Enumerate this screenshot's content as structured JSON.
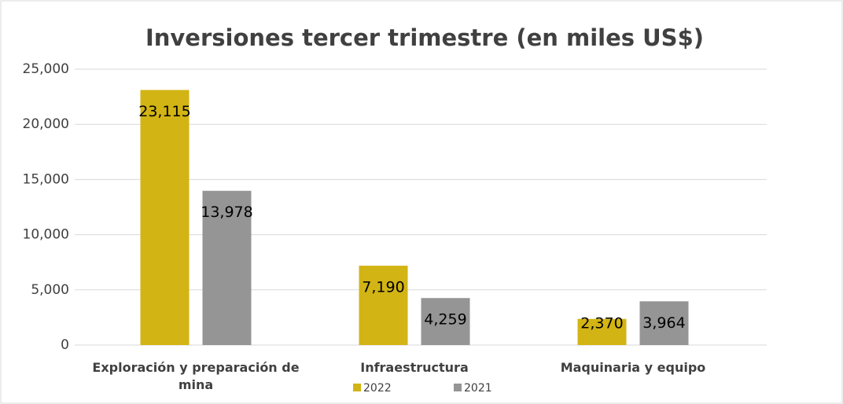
{
  "chart_data": {
    "type": "bar",
    "title": "Inversiones tercer trimestre (en miles US$)",
    "categories": [
      "Exploración y preparación de mina",
      "Infraestructura",
      "Maquinaria y equipo"
    ],
    "series": [
      {
        "name": "2022",
        "color": "#d2b414",
        "values": [
          23115,
          7190,
          2370
        ],
        "value_labels": [
          "23,115",
          "7,190",
          "2,370"
        ]
      },
      {
        "name": "2021",
        "color": "#959595",
        "values": [
          13978,
          4259,
          3964
        ],
        "value_labels": [
          "13,978",
          "4,259",
          "3,964"
        ]
      }
    ],
    "ylim": [
      0,
      25000
    ],
    "yticks": [
      0,
      {
        "value": 5000,
        "label": "5,000"
      },
      {
        "value": 10000,
        "label": "10,000"
      },
      {
        "value": 15000,
        "label": "15,000"
      },
      {
        "value": 20000,
        "label": "20,000"
      },
      {
        "value": 25000,
        "label": "25,000"
      }
    ],
    "grid": true,
    "legend": "bottom"
  }
}
